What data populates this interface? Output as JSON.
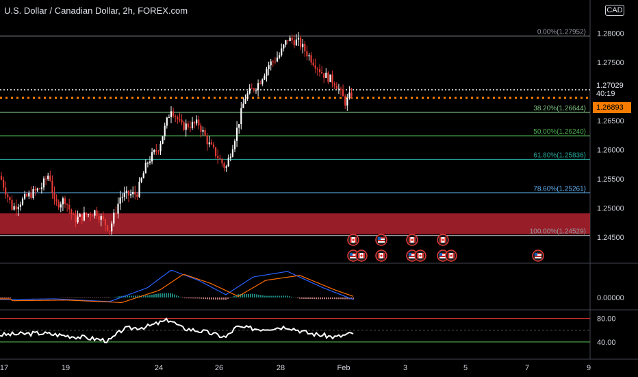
{
  "header": {
    "title": "U.S. Dollar / Canadian Dollar, 2h, FOREX.com",
    "currency_label": "CAD"
  },
  "price_badge": {
    "price": "1.27029",
    "countdown": "40:19"
  },
  "orange_badge": {
    "price": "1.26893"
  },
  "chart_data": {
    "type": "candlestick",
    "price_axis": {
      "ylim": [
        1.2436,
        1.2817
      ],
      "ticks": [
        1.28,
        1.275,
        1.27,
        1.265,
        1.26,
        1.255,
        1.25,
        1.245
      ],
      "tick_labels": [
        "1.28000",
        "1.27500",
        "",
        "1.26500",
        "1.26000",
        "1.25500",
        "1.25000",
        "1.24500"
      ]
    },
    "x_axis": {
      "labels": [
        "17",
        "19",
        "24",
        "26",
        "28",
        "Feb",
        "3",
        "5",
        "7",
        "9"
      ]
    },
    "fib_levels": [
      {
        "label": "0.00%(1.27952)",
        "value": 1.27952,
        "color": "#9598a1"
      },
      {
        "label": "38.20%(1.26644)",
        "value": 1.26644,
        "color": "#81c784"
      },
      {
        "label": "50.00%(1.26240)",
        "value": 1.2624,
        "color": "#4caf50"
      },
      {
        "label": "61.80%(1.25836)",
        "value": 1.25836,
        "color": "#26a69a"
      },
      {
        "label": "78.60%(1.25261)",
        "value": 1.25261,
        "color": "#64b5f6"
      },
      {
        "label": "100.00%(1.24529)",
        "value": 1.24529,
        "color": "#9598a1"
      }
    ],
    "zone": {
      "from": 1.2455,
      "to": 1.2491,
      "color": "#b2222f"
    },
    "dotted_line": {
      "value": 1.26893,
      "color": "#f57c00"
    },
    "white_dotted_line": {
      "value": 1.27029
    },
    "macd": {
      "zero_label": "0.00000"
    },
    "rsi": {
      "upper": 80,
      "lower": 40,
      "upper_label": "80.00",
      "lower_label": "40.00"
    },
    "events": [
      {
        "flags": [
          "ca-flag-icon"
        ],
        "row": 1
      },
      {
        "flags": [
          "us-flag-icon"
        ],
        "row": 1
      },
      {
        "flags": [
          "ca-flag-icon"
        ],
        "row": 1
      },
      {
        "flags": [
          "ca-flag-icon"
        ],
        "row": 1
      },
      {
        "flags": [
          "us-flag-icon",
          "ca-flag-icon"
        ],
        "row": 2
      },
      {
        "flags": [
          "ca-flag-icon"
        ],
        "row": 2
      },
      {
        "flags": [
          "us-flag-icon",
          "ca-flag-icon"
        ],
        "row": 2
      },
      {
        "flags": [
          "us-flag-icon",
          "ca-flag-icon"
        ],
        "row": 2
      },
      {
        "flags": [
          "us-flag-icon"
        ],
        "row": 2
      }
    ],
    "colors": {
      "up": "#ffffff",
      "down": "#e53935",
      "axis_text": "#d1d4dc",
      "macd": "#2962ff",
      "signal": "#ff6d00",
      "rsi": "#ffffff"
    }
  }
}
